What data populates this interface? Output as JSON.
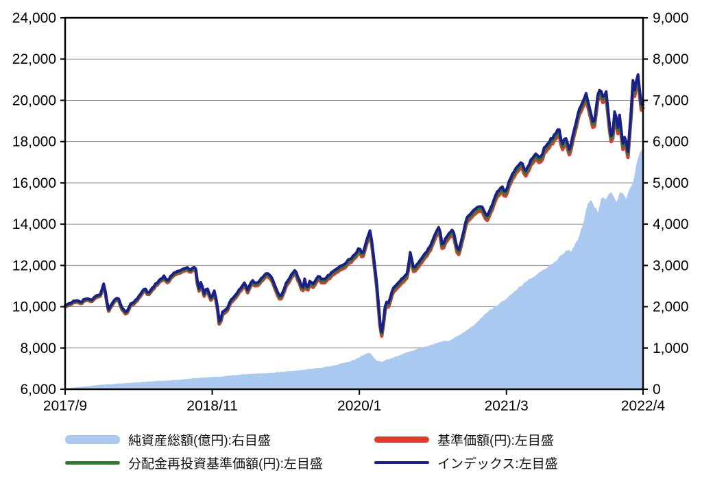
{
  "chart_data": {
    "type": "line",
    "title": "",
    "x_axis": {
      "labels": [
        "2017/9",
        "2018/11",
        "2020/1",
        "2021/3",
        "2022/4"
      ],
      "label_months": [
        0,
        14,
        28,
        42,
        55
      ],
      "domain_months": [
        0,
        55
      ]
    },
    "left_axis": {
      "min": 6000,
      "max": 24000,
      "step": 2000,
      "ticks": [
        "24,000",
        "22,000",
        "20,000",
        "18,000",
        "16,000",
        "14,000",
        "12,000",
        "10,000",
        "8,000",
        "6,000"
      ]
    },
    "right_axis": {
      "min": 0,
      "max": 9000,
      "step": 1000,
      "ticks": [
        "9,000",
        "8,000",
        "7,000",
        "6,000",
        "5,000",
        "4,000",
        "3,000",
        "2,000",
        "1,000",
        "0"
      ]
    },
    "grid": true,
    "colors": {
      "area": "#A9C9F0",
      "nav_red": "#E2392B",
      "reinvest_green": "#2C7A2C",
      "index_blue": "#1A1F8F",
      "gridline": "#8C8C8C",
      "border": "#000000",
      "text": "#000000"
    },
    "series": [
      {
        "name": "純資産総額(億円):右目盛",
        "type": "area",
        "axis": "right",
        "color": "#A9C9F0",
        "points": [
          [
            0,
            25
          ],
          [
            1,
            45
          ],
          [
            2,
            70
          ],
          [
            3,
            95
          ],
          [
            4,
            118
          ],
          [
            5,
            135
          ],
          [
            6,
            150
          ],
          [
            7,
            165
          ],
          [
            8,
            185
          ],
          [
            9,
            200
          ],
          [
            10,
            215
          ],
          [
            11,
            235
          ],
          [
            12,
            258
          ],
          [
            13,
            278
          ],
          [
            14,
            295
          ],
          [
            14.7,
            303
          ],
          [
            15.6,
            330
          ],
          [
            16.6,
            350
          ],
          [
            17.6,
            368
          ],
          [
            18.6,
            385
          ],
          [
            19.6,
            400
          ],
          [
            20.6,
            420
          ],
          [
            21.6,
            445
          ],
          [
            22.6,
            470
          ],
          [
            23.6,
            500
          ],
          [
            24.6,
            530
          ],
          [
            25.6,
            575
          ],
          [
            26.6,
            640
          ],
          [
            27.6,
            720
          ],
          [
            28.6,
            860
          ],
          [
            29.05,
            880
          ],
          [
            29.6,
            700
          ],
          [
            30.15,
            660
          ],
          [
            30.6,
            720
          ],
          [
            31.6,
            800
          ],
          [
            32.6,
            900
          ],
          [
            33.6,
            980
          ],
          [
            34.6,
            1050
          ],
          [
            35.6,
            1140
          ],
          [
            36.1,
            1185
          ],
          [
            36.5,
            1160
          ],
          [
            37,
            1240
          ],
          [
            38,
            1390
          ],
          [
            39,
            1560
          ],
          [
            40,
            1840
          ],
          [
            41,
            2010
          ],
          [
            42,
            2200
          ],
          [
            43,
            2430
          ],
          [
            44,
            2640
          ],
          [
            45,
            2810
          ],
          [
            46,
            2980
          ],
          [
            47,
            3180
          ],
          [
            47.4,
            3300
          ],
          [
            47.8,
            3380
          ],
          [
            48.2,
            3340
          ],
          [
            48.8,
            3640
          ],
          [
            49.3,
            4000
          ],
          [
            49.7,
            4480
          ],
          [
            50.1,
            4560
          ],
          [
            50.4,
            4420
          ],
          [
            50.7,
            4300
          ],
          [
            51.1,
            4700
          ],
          [
            51.5,
            4600
          ],
          [
            51.9,
            4800
          ],
          [
            52.2,
            4680
          ],
          [
            52.5,
            4530
          ],
          [
            52.8,
            4800
          ],
          [
            53.1,
            4740
          ],
          [
            53.4,
            4600
          ],
          [
            53.7,
            4880
          ],
          [
            54,
            4950
          ],
          [
            54.2,
            5180
          ],
          [
            54.5,
            5600
          ],
          [
            54.8,
            5840
          ],
          [
            55,
            5700
          ]
        ]
      },
      {
        "name": "基準価額(円):左目盛",
        "type": "line",
        "axis": "left",
        "color": "#E2392B",
        "derived_from_index_offset": {
          "start": 70,
          "end": 300
        }
      },
      {
        "name": "分配金再投資基準価額(円):左目盛",
        "type": "line",
        "axis": "left",
        "color": "#2C7A2C",
        "derived_from_index_offset": {
          "start": 35,
          "end": 140
        }
      },
      {
        "name": "インデックス:左目盛",
        "type": "line",
        "axis": "left",
        "color": "#1A1F8F",
        "points": [
          [
            0,
            10050
          ],
          [
            0.5,
            10180
          ],
          [
            1,
            10300
          ],
          [
            1.5,
            10220
          ],
          [
            2,
            10420
          ],
          [
            2.5,
            10350
          ],
          [
            3,
            10520
          ],
          [
            3.4,
            10620
          ],
          [
            3.7,
            11150
          ],
          [
            4.1,
            9850
          ],
          [
            4.6,
            10260
          ],
          [
            5,
            10480
          ],
          [
            5.4,
            9980
          ],
          [
            5.8,
            9670
          ],
          [
            6.2,
            10120
          ],
          [
            6.6,
            10260
          ],
          [
            7.1,
            10520
          ],
          [
            7.6,
            10930
          ],
          [
            7.9,
            10620
          ],
          [
            8.4,
            10980
          ],
          [
            8.9,
            11240
          ],
          [
            9.4,
            11490
          ],
          [
            9.7,
            11230
          ],
          [
            10.2,
            11560
          ],
          [
            10.6,
            11680
          ],
          [
            11.1,
            11790
          ],
          [
            11.6,
            11900
          ],
          [
            12,
            11800
          ],
          [
            12.4,
            11980
          ],
          [
            12.7,
            10790
          ],
          [
            12.95,
            11270
          ],
          [
            13.2,
            10640
          ],
          [
            13.5,
            10950
          ],
          [
            13.9,
            10420
          ],
          [
            14.2,
            10780
          ],
          [
            14.45,
            10160
          ],
          [
            14.7,
            9150
          ],
          [
            15,
            9760
          ],
          [
            15.4,
            9900
          ],
          [
            15.8,
            10340
          ],
          [
            16.2,
            10560
          ],
          [
            16.6,
            10820
          ],
          [
            17.1,
            11160
          ],
          [
            17.35,
            10830
          ],
          [
            17.8,
            11260
          ],
          [
            18.3,
            11120
          ],
          [
            18.8,
            11420
          ],
          [
            19.2,
            11650
          ],
          [
            19.6,
            11480
          ],
          [
            20.1,
            10820
          ],
          [
            20.5,
            10450
          ],
          [
            21,
            11080
          ],
          [
            21.5,
            11540
          ],
          [
            21.9,
            11760
          ],
          [
            22.3,
            11280
          ],
          [
            22.6,
            10850
          ],
          [
            22.8,
            11320
          ],
          [
            23.05,
            10820
          ],
          [
            23.3,
            11290
          ],
          [
            23.6,
            11080
          ],
          [
            24.1,
            11480
          ],
          [
            24.6,
            11290
          ],
          [
            25.1,
            11540
          ],
          [
            25.6,
            11760
          ],
          [
            26.1,
            11930
          ],
          [
            26.6,
            12080
          ],
          [
            27.1,
            12310
          ],
          [
            27.6,
            12550
          ],
          [
            28,
            12880
          ],
          [
            28.3,
            12480
          ],
          [
            28.7,
            13240
          ],
          [
            29.05,
            13750
          ],
          [
            29.4,
            12280
          ],
          [
            29.7,
            10900
          ],
          [
            29.95,
            9300
          ],
          [
            30.15,
            8700
          ],
          [
            30.5,
            10250
          ],
          [
            30.8,
            10150
          ],
          [
            31.2,
            10900
          ],
          [
            31.6,
            11080
          ],
          [
            32.1,
            11350
          ],
          [
            32.6,
            11690
          ],
          [
            32.85,
            12620
          ],
          [
            33.2,
            11840
          ],
          [
            33.6,
            12120
          ],
          [
            34.1,
            12480
          ],
          [
            34.6,
            12800
          ],
          [
            35.1,
            13380
          ],
          [
            35.6,
            13900
          ],
          [
            35.9,
            12950
          ],
          [
            36.3,
            13380
          ],
          [
            36.6,
            13550
          ],
          [
            36.9,
            13780
          ],
          [
            37.4,
            12620
          ],
          [
            37.8,
            13400
          ],
          [
            38.2,
            14280
          ],
          [
            38.6,
            14520
          ],
          [
            39.1,
            14780
          ],
          [
            39.6,
            14920
          ],
          [
            40.1,
            14380
          ],
          [
            40.6,
            14880
          ],
          [
            41.1,
            15580
          ],
          [
            41.6,
            15840
          ],
          [
            41.9,
            15560
          ],
          [
            42.4,
            16240
          ],
          [
            42.9,
            16720
          ],
          [
            43.4,
            17050
          ],
          [
            43.8,
            16560
          ],
          [
            44.3,
            17080
          ],
          [
            44.8,
            17420
          ],
          [
            45.2,
            17180
          ],
          [
            45.6,
            17650
          ],
          [
            46.1,
            18020
          ],
          [
            46.6,
            18350
          ],
          [
            47,
            18680
          ],
          [
            47.3,
            17820
          ],
          [
            47.6,
            18350
          ],
          [
            48,
            17600
          ],
          [
            48.4,
            18450
          ],
          [
            48.8,
            19350
          ],
          [
            49.2,
            19900
          ],
          [
            49.6,
            20380
          ],
          [
            50,
            19400
          ],
          [
            50.3,
            18800
          ],
          [
            50.7,
            20250
          ],
          [
            50.95,
            20630
          ],
          [
            51.2,
            20100
          ],
          [
            51.5,
            20400
          ],
          [
            51.8,
            18900
          ],
          [
            52.05,
            17950
          ],
          [
            52.3,
            19600
          ],
          [
            52.6,
            18700
          ],
          [
            52.8,
            19300
          ],
          [
            53.05,
            17900
          ],
          [
            53.3,
            18300
          ],
          [
            53.55,
            17480
          ],
          [
            53.8,
            19000
          ],
          [
            54.05,
            21020
          ],
          [
            54.25,
            20430
          ],
          [
            54.5,
            21430
          ],
          [
            54.8,
            19830
          ],
          [
            55,
            19950
          ]
        ]
      }
    ],
    "render_hints": {
      "line_jitter": 50,
      "area_jitter": 9,
      "seed": 20220401,
      "legend_position": "bottom"
    }
  },
  "legend": {
    "items": [
      {
        "label": "純資産総額(億円):右目盛"
      },
      {
        "label": "基準価額(円):左目盛"
      },
      {
        "label": "分配金再投資基準価額(円):左目盛"
      },
      {
        "label": "インデックス:左目盛"
      }
    ]
  }
}
